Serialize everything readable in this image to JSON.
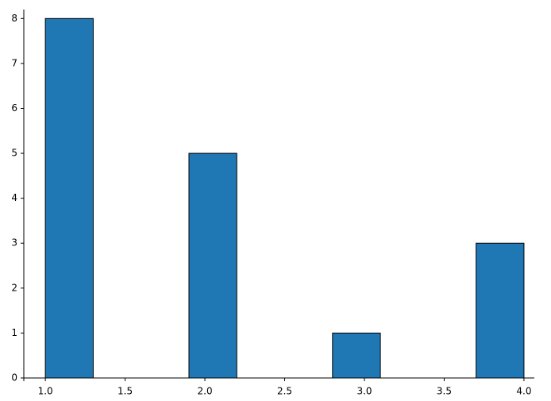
{
  "chart_data": {
    "type": "histogram",
    "bins": [
      1.0,
      1.3,
      1.6,
      1.9,
      2.2,
      2.5,
      2.8,
      3.1,
      3.4,
      3.7,
      4.0
    ],
    "values": [
      8,
      0,
      0,
      5,
      0,
      0,
      1,
      0,
      0,
      3
    ],
    "color": "#1f77b4",
    "edgecolor": "#000000",
    "xlim": [
      0.865,
      4.065
    ],
    "ylim": [
      0,
      8.2
    ],
    "xticks": [
      {
        "value": 1,
        "label": "1.0"
      },
      1.5,
      {
        "value": 2,
        "label": "2.0"
      },
      2.5,
      {
        "value": 3,
        "label": "3.0"
      },
      3.5,
      {
        "value": 4,
        "label": "4.0"
      }
    ],
    "yticks": [
      0,
      1,
      2,
      3,
      4,
      5,
      6,
      7,
      8
    ],
    "grid": false
  }
}
